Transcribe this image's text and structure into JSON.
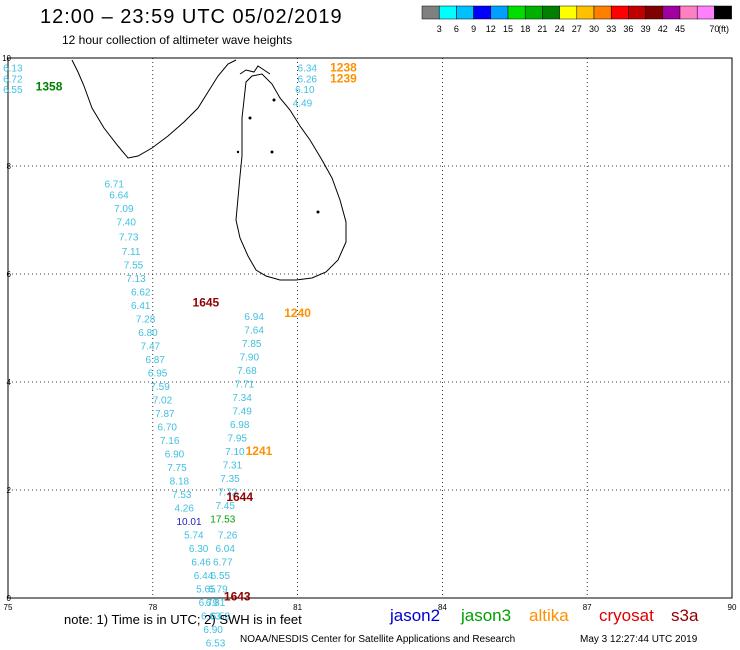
{
  "title": "12:00  –  23:59 UTC 05/02/2019",
  "subtitle": "12 hour collection of altimeter wave heights",
  "colorbar": {
    "colors": [
      "#808080",
      "#00ffff",
      "#00c0ff",
      "#0000ff",
      "#00a0ff",
      "#00e000",
      "#00b000",
      "#008000",
      "#ffff00",
      "#ffc000",
      "#ff8000",
      "#ff0000",
      "#c00000",
      "#800000",
      "#a000a0",
      "#ff80c0",
      "#ff80ff",
      "#000000"
    ],
    "labels": [
      "3",
      "6",
      "9",
      "12",
      "15",
      "18",
      "21",
      "24",
      "27",
      "30",
      "33",
      "36",
      "39",
      "42",
      "45",
      "70"
    ],
    "unit": "(ft)"
  },
  "axes": {
    "x_ticks": [
      "75",
      "78",
      "81",
      "84",
      "87",
      "90"
    ],
    "y_ticks": [
      "0",
      "2",
      "4",
      "6",
      "8",
      "10"
    ],
    "lon_range": [
      75,
      90
    ],
    "lat_range": [
      0,
      10
    ]
  },
  "satellites": [
    {
      "name": "jason2",
      "color": "#0000cc"
    },
    {
      "name": "jason3",
      "color": "#00a000"
    },
    {
      "name": "altika",
      "color": "#ff9000"
    },
    {
      "name": "cryosat",
      "color": "#dd0000"
    },
    {
      "name": "s3a",
      "color": "#900000"
    }
  ],
  "note": "note:  1) Time is in UTC;  2) SWH is in feet",
  "credit": "NOAA/NESDIS Center for Satellite Applications and Research",
  "credit_time": "May  3 12:27:44 UTC 2019",
  "observations": [
    {
      "lon": 75.1,
      "lat": 9.75,
      "v": "6.13",
      "c": "#40c0e0"
    },
    {
      "lon": 75.1,
      "lat": 9.55,
      "v": "6.72",
      "c": "#40c0e0"
    },
    {
      "lon": 75.1,
      "lat": 9.35,
      "v": "6.55",
      "c": "#40c0e0"
    },
    {
      "lon": 77.2,
      "lat": 7.6,
      "v": "6.71",
      "c": "#40c0e0"
    },
    {
      "lon": 77.3,
      "lat": 7.4,
      "v": "6.64",
      "c": "#40c0e0"
    },
    {
      "lon": 77.4,
      "lat": 7.15,
      "v": "7.09",
      "c": "#40c0e0"
    },
    {
      "lon": 77.45,
      "lat": 6.9,
      "v": "7.40",
      "c": "#40c0e0"
    },
    {
      "lon": 77.5,
      "lat": 6.62,
      "v": "7.73",
      "c": "#40c0e0"
    },
    {
      "lon": 77.55,
      "lat": 6.35,
      "v": "7.11",
      "c": "#40c0e0"
    },
    {
      "lon": 77.6,
      "lat": 6.1,
      "v": "7.55",
      "c": "#40c0e0"
    },
    {
      "lon": 77.65,
      "lat": 5.85,
      "v": "7.13",
      "c": "#40c0e0"
    },
    {
      "lon": 77.75,
      "lat": 5.6,
      "v": "6.62",
      "c": "#40c0e0"
    },
    {
      "lon": 77.75,
      "lat": 5.35,
      "v": "6.41",
      "c": "#40c0e0"
    },
    {
      "lon": 77.85,
      "lat": 5.1,
      "v": "7.28",
      "c": "#40c0e0"
    },
    {
      "lon": 77.9,
      "lat": 4.85,
      "v": "6.80",
      "c": "#40c0e0"
    },
    {
      "lon": 77.95,
      "lat": 4.6,
      "v": "7.47",
      "c": "#40c0e0"
    },
    {
      "lon": 78.05,
      "lat": 4.35,
      "v": "6.87",
      "c": "#40c0e0"
    },
    {
      "lon": 78.1,
      "lat": 4.1,
      "v": "6.95",
      "c": "#40c0e0"
    },
    {
      "lon": 78.15,
      "lat": 3.85,
      "v": "7.59",
      "c": "#40c0e0"
    },
    {
      "lon": 78.2,
      "lat": 3.6,
      "v": "7.02",
      "c": "#40c0e0"
    },
    {
      "lon": 78.25,
      "lat": 3.35,
      "v": "7.87",
      "c": "#40c0e0"
    },
    {
      "lon": 78.3,
      "lat": 3.1,
      "v": "6.70",
      "c": "#40c0e0"
    },
    {
      "lon": 78.35,
      "lat": 2.85,
      "v": "7.16",
      "c": "#40c0e0"
    },
    {
      "lon": 78.45,
      "lat": 2.6,
      "v": "6.90",
      "c": "#40c0e0"
    },
    {
      "lon": 78.5,
      "lat": 2.35,
      "v": "7.75",
      "c": "#40c0e0"
    },
    {
      "lon": 78.55,
      "lat": 2.1,
      "v": "8.18",
      "c": "#40c0e0"
    },
    {
      "lon": 78.6,
      "lat": 1.85,
      "v": "7.53",
      "c": "#40c0e0"
    },
    {
      "lon": 78.65,
      "lat": 1.6,
      "v": "4.26",
      "c": "#40c0e0"
    },
    {
      "lon": 78.75,
      "lat": 1.35,
      "v": "10.01",
      "c": "#2020c0"
    },
    {
      "lon": 78.85,
      "lat": 1.1,
      "v": "5.74",
      "c": "#40c0e0"
    },
    {
      "lon": 78.95,
      "lat": 0.85,
      "v": "6.30",
      "c": "#40c0e0"
    },
    {
      "lon": 79.0,
      "lat": 0.6,
      "v": "6.46",
      "c": "#40c0e0"
    },
    {
      "lon": 79.05,
      "lat": 0.35,
      "v": "6.44",
      "c": "#40c0e0"
    },
    {
      "lon": 79.1,
      "lat": 0.1,
      "v": "5.65",
      "c": "#40c0e0"
    },
    {
      "lon": 79.15,
      "lat": -0.15,
      "v": "6.79",
      "c": "#40c0e0"
    },
    {
      "lon": 79.2,
      "lat": -0.4,
      "v": "6.63",
      "c": "#40c0e0"
    },
    {
      "lon": 79.25,
      "lat": -0.65,
      "v": "6.90",
      "c": "#40c0e0"
    },
    {
      "lon": 79.3,
      "lat": -0.9,
      "v": "6.53",
      "c": "#40c0e0"
    },
    {
      "lon": 79.55,
      "lat": 1.1,
      "v": "7.26",
      "c": "#40c0e0"
    },
    {
      "lon": 79.5,
      "lat": 0.85,
      "v": "6.04",
      "c": "#40c0e0"
    },
    {
      "lon": 79.45,
      "lat": 0.6,
      "v": "6.77",
      "c": "#40c0e0"
    },
    {
      "lon": 79.4,
      "lat": 0.35,
      "v": "6.55",
      "c": "#40c0e0"
    },
    {
      "lon": 79.35,
      "lat": 0.1,
      "v": "6.79",
      "c": "#40c0e0"
    },
    {
      "lon": 79.3,
      "lat": -0.15,
      "v": "6.81",
      "c": "#40c0e0"
    },
    {
      "lon": 79.4,
      "lat": -0.4,
      "v": "6.58",
      "c": "#40c0e0"
    },
    {
      "lon": 79.45,
      "lat": 1.4,
      "v": "17.53",
      "c": "#00a000"
    },
    {
      "lon": 79.5,
      "lat": 1.65,
      "v": "7.45",
      "c": "#40c0e0"
    },
    {
      "lon": 79.55,
      "lat": 1.9,
      "v": "7.72",
      "c": "#40c0e0"
    },
    {
      "lon": 79.6,
      "lat": 2.15,
      "v": "7.35",
      "c": "#40c0e0"
    },
    {
      "lon": 79.65,
      "lat": 2.4,
      "v": "7.31",
      "c": "#40c0e0"
    },
    {
      "lon": 79.7,
      "lat": 2.65,
      "v": "7.10",
      "c": "#40c0e0"
    },
    {
      "lon": 79.75,
      "lat": 2.9,
      "v": "7.95",
      "c": "#40c0e0"
    },
    {
      "lon": 79.8,
      "lat": 3.15,
      "v": "6.98",
      "c": "#40c0e0"
    },
    {
      "lon": 79.85,
      "lat": 3.4,
      "v": "7.49",
      "c": "#40c0e0"
    },
    {
      "lon": 79.85,
      "lat": 3.65,
      "v": "7.34",
      "c": "#40c0e0"
    },
    {
      "lon": 79.9,
      "lat": 3.9,
      "v": "7.71",
      "c": "#40c0e0"
    },
    {
      "lon": 79.95,
      "lat": 4.15,
      "v": "7.68",
      "c": "#40c0e0"
    },
    {
      "lon": 80.0,
      "lat": 4.4,
      "v": "7.90",
      "c": "#40c0e0"
    },
    {
      "lon": 80.05,
      "lat": 4.65,
      "v": "7.85",
      "c": "#40c0e0"
    },
    {
      "lon": 80.1,
      "lat": 4.9,
      "v": "7.64",
      "c": "#40c0e0"
    },
    {
      "lon": 80.1,
      "lat": 5.15,
      "v": "6.94",
      "c": "#40c0e0"
    },
    {
      "lon": 81.2,
      "lat": 9.75,
      "v": "6.34",
      "c": "#40c0e0"
    },
    {
      "lon": 81.2,
      "lat": 9.55,
      "v": "6.26",
      "c": "#40c0e0"
    },
    {
      "lon": 81.15,
      "lat": 9.35,
      "v": "6.10",
      "c": "#40c0e0"
    },
    {
      "lon": 81.1,
      "lat": 9.1,
      "v": "4.49",
      "c": "#40c0e0"
    }
  ],
  "times": [
    {
      "lon": 75.85,
      "lat": 9.4,
      "v": "1358",
      "c": "#008000"
    },
    {
      "lon": 81.95,
      "lat": 9.75,
      "v": "1238",
      "c": "#ff9000"
    },
    {
      "lon": 81.95,
      "lat": 9.55,
      "v": "1239",
      "c": "#ff9000"
    },
    {
      "lon": 81.0,
      "lat": 5.2,
      "v": "1240",
      "c": "#ff9000"
    },
    {
      "lon": 80.2,
      "lat": 2.65,
      "v": "1241",
      "c": "#ff9000"
    },
    {
      "lon": 79.8,
      "lat": 1.8,
      "v": "1644",
      "c": "#900000"
    },
    {
      "lon": 79.1,
      "lat": 5.4,
      "v": "1645",
      "c": "#900000"
    },
    {
      "lon": 79.75,
      "lat": -0.05,
      "v": "1643",
      "c": "#900000"
    }
  ]
}
